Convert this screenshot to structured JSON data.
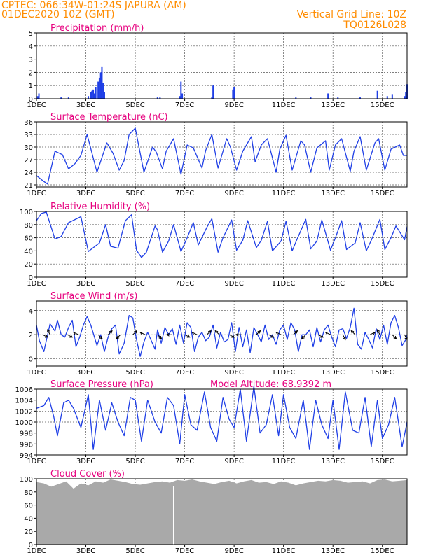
{
  "header": {
    "line1": "CPTEC:   066:34W-01:24S   JAPURA (AM)",
    "line2": "01DEC2020 10Z (GMT)",
    "grid_note": "Vertical Grid Line: 10Z",
    "code": "TQ0126L028"
  },
  "colors": {
    "header": "#ff8c00",
    "title": "#e6007e",
    "series": "#1f3fe6",
    "cloud": "#a9a9a9",
    "arrow": "#000000"
  },
  "x_ticks": [
    "1DEC",
    "3DEC",
    "5DEC",
    "7DEC",
    "9DEC",
    "11DEC",
    "13DEC",
    "15DEC"
  ],
  "x_tick_days": [
    0,
    2,
    4,
    6,
    8,
    10,
    12,
    14
  ],
  "xlim_days": [
    0,
    15
  ],
  "chart_data": [
    {
      "id": "precip",
      "type": "bar",
      "title": "Precipitation (mm/h)",
      "ylim": [
        0,
        5
      ],
      "yticks": [
        0,
        1,
        2,
        3,
        4,
        5
      ],
      "x_days": [
        0.05,
        0.1,
        1.0,
        1.3,
        2.1,
        2.2,
        2.25,
        2.3,
        2.35,
        2.4,
        2.5,
        2.55,
        2.6,
        2.65,
        2.7,
        2.75,
        4.9,
        5.0,
        5.8,
        5.85,
        5.9,
        7.1,
        7.15,
        7.95,
        8.0,
        10.5,
        11.1,
        11.8,
        12.2,
        13.1,
        13.8,
        14.2,
        14.4,
        14.9,
        14.95,
        15.0
      ],
      "values": [
        0.2,
        0.4,
        0.1,
        0.1,
        0.2,
        0.5,
        0.6,
        0.7,
        0.4,
        0.9,
        1.3,
        1.6,
        2.0,
        2.4,
        1.2,
        0.5,
        0.1,
        0.1,
        0.2,
        1.3,
        0.4,
        0.1,
        1.0,
        0.7,
        0.9,
        0.1,
        0.1,
        0.4,
        0.1,
        0.1,
        0.6,
        0.2,
        0.3,
        0.2,
        0.5,
        1.1
      ]
    },
    {
      "id": "temp",
      "type": "line",
      "title": "Surface Temperature (nC)",
      "ylim": [
        20.5,
        36
      ],
      "yticks": [
        21,
        24,
        27,
        30,
        33,
        36
      ],
      "x_days": [
        0,
        0.3,
        0.45,
        0.75,
        1.05,
        1.3,
        1.55,
        1.8,
        2.05,
        2.45,
        2.85,
        3.1,
        3.35,
        3.55,
        3.75,
        4.0,
        4.35,
        4.7,
        4.85,
        5.1,
        5.25,
        5.55,
        5.85,
        6.1,
        6.35,
        6.7,
        6.85,
        7.1,
        7.35,
        7.7,
        7.85,
        8.1,
        8.35,
        8.7,
        8.85,
        9.1,
        9.35,
        9.7,
        9.85,
        10.1,
        10.35,
        10.7,
        10.85,
        11.1,
        11.35,
        11.7,
        11.85,
        12.1,
        12.35,
        12.7,
        12.85,
        13.1,
        13.35,
        13.7,
        13.85,
        14.1,
        14.35,
        14.7,
        14.85,
        15.0
      ],
      "values": [
        23.2,
        21.8,
        21.2,
        29.0,
        28.2,
        24.8,
        26.0,
        28.0,
        33.0,
        24.0,
        31.0,
        28.5,
        24.5,
        26.8,
        33.0,
        34.5,
        24.0,
        30.0,
        28.8,
        24.8,
        29.0,
        32.0,
        23.5,
        30.5,
        29.8,
        25.0,
        29.2,
        33.0,
        25.0,
        32.0,
        30.0,
        24.5,
        29.0,
        32.5,
        26.5,
        30.5,
        32.0,
        24.0,
        29.5,
        32.8,
        24.5,
        31.5,
        30.5,
        24.0,
        29.8,
        31.5,
        24.5,
        30.5,
        32.0,
        24.2,
        29.0,
        32.5,
        24.5,
        31.0,
        32.0,
        24.5,
        29.5,
        30.5,
        28.0,
        28.0
      ]
    },
    {
      "id": "rh",
      "type": "line",
      "title": "Relative Humidity (%)",
      "ylim": [
        0,
        100
      ],
      "yticks": [
        0,
        20,
        40,
        60,
        80,
        100
      ],
      "x_days": [
        0,
        0.2,
        0.4,
        0.75,
        1.0,
        1.3,
        1.8,
        2.1,
        2.55,
        2.8,
        3.0,
        3.3,
        3.6,
        3.85,
        4.05,
        4.25,
        4.45,
        4.8,
        4.9,
        5.1,
        5.35,
        5.55,
        5.85,
        6.1,
        6.35,
        6.55,
        6.9,
        7.1,
        7.35,
        7.55,
        7.9,
        8.1,
        8.35,
        8.55,
        8.9,
        9.1,
        9.35,
        9.55,
        9.9,
        10.1,
        10.35,
        10.55,
        10.9,
        11.1,
        11.35,
        11.55,
        11.9,
        12.1,
        12.35,
        12.55,
        12.9,
        13.1,
        13.35,
        13.55,
        13.9,
        14.1,
        14.35,
        14.55,
        14.9,
        15.0
      ],
      "values": [
        86,
        97,
        99,
        58,
        62,
        83,
        92,
        39,
        52,
        80,
        47,
        44,
        86,
        95,
        41,
        30,
        38,
        78,
        72,
        38,
        55,
        80,
        39,
        60,
        83,
        49,
        76,
        89,
        38,
        60,
        87,
        41,
        56,
        86,
        45,
        56,
        85,
        40,
        55,
        85,
        40,
        58,
        88,
        43,
        55,
        87,
        41,
        60,
        86,
        42,
        52,
        83,
        40,
        56,
        88,
        42,
        60,
        78,
        57,
        77
      ]
    },
    {
      "id": "wind",
      "type": "line",
      "title": "Surface Wind (m/s)",
      "ylim": [
        -0.6,
        4.8
      ],
      "yticks": [
        0,
        2,
        4
      ],
      "x_days": [
        0,
        0.12,
        0.3,
        0.55,
        0.75,
        0.85,
        1.0,
        1.15,
        1.3,
        1.45,
        1.6,
        1.75,
        1.9,
        2.05,
        2.2,
        2.45,
        2.6,
        2.75,
        2.9,
        3.05,
        3.2,
        3.35,
        3.55,
        3.75,
        3.9,
        4.05,
        4.2,
        4.35,
        4.5,
        4.65,
        4.8,
        4.9,
        5.05,
        5.2,
        5.35,
        5.5,
        5.65,
        5.8,
        5.95,
        6.1,
        6.25,
        6.4,
        6.55,
        6.7,
        6.85,
        7.0,
        7.15,
        7.3,
        7.45,
        7.6,
        7.75,
        7.9,
        8.05,
        8.2,
        8.35,
        8.5,
        8.65,
        8.8,
        8.95,
        9.1,
        9.25,
        9.4,
        9.55,
        9.7,
        9.85,
        10.0,
        10.15,
        10.3,
        10.45,
        10.6,
        10.75,
        10.9,
        11.05,
        11.2,
        11.35,
        11.5,
        11.65,
        11.8,
        11.95,
        12.1,
        12.25,
        12.4,
        12.55,
        12.7,
        12.85,
        13.0,
        13.15,
        13.3,
        13.45,
        13.6,
        13.75,
        13.9,
        14.05,
        14.2,
        14.35,
        14.5,
        14.65,
        14.8,
        14.95,
        15.0
      ],
      "values": [
        2.8,
        1.5,
        0.6,
        2.9,
        2.3,
        3.2,
        2.0,
        1.8,
        2.6,
        3.2,
        1.0,
        1.8,
        2.8,
        3.5,
        2.8,
        1.1,
        2.0,
        0.6,
        1.8,
        2.5,
        2.8,
        0.4,
        1.3,
        3.6,
        3.4,
        1.6,
        0.2,
        1.4,
        2.2,
        1.5,
        0.8,
        2.4,
        1.3,
        2.6,
        2.0,
        2.5,
        1.2,
        2.8,
        1.3,
        3.0,
        2.6,
        0.6,
        1.8,
        2.2,
        1.5,
        1.8,
        2.8,
        0.9,
        2.2,
        1.4,
        1.6,
        3.0,
        0.6,
        2.6,
        1.0,
        2.4,
        0.5,
        2.6,
        2.0,
        1.4,
        2.8,
        1.6,
        2.0,
        1.2,
        2.4,
        2.8,
        1.6,
        3.0,
        2.4,
        0.6,
        2.0,
        2.0,
        2.4,
        1.0,
        2.6,
        1.4,
        2.4,
        2.8,
        1.8,
        1.0,
        2.4,
        2.5,
        1.7,
        2.6,
        4.2,
        1.2,
        0.8,
        2.2,
        1.6,
        0.9,
        2.5,
        1.6,
        2.8,
        1.2,
        3.0,
        3.6,
        2.6,
        1.1,
        1.6,
        2.0
      ],
      "arrows": {
        "x_days": [
          0.25,
          0.55,
          1.25,
          1.7,
          2.5,
          2.9,
          3.4,
          3.9,
          4.4,
          4.9,
          5.5,
          6.0,
          6.5,
          6.9,
          7.4,
          7.8,
          8.3,
          8.9,
          9.4,
          9.9,
          10.4,
          10.9,
          11.4,
          11.9,
          12.4,
          12.9,
          13.5,
          13.9,
          14.4,
          14.9
        ],
        "u": [
          2,
          -1,
          2,
          -2,
          1,
          1,
          -1,
          2,
          -2,
          1,
          -2,
          2,
          -2,
          1,
          -1,
          2,
          -2,
          1,
          2,
          -2,
          1,
          -1,
          2,
          -2,
          1,
          -1,
          2,
          -1,
          1,
          1
        ],
        "v": [
          -1,
          2,
          -1,
          1,
          -1,
          1,
          -1,
          2,
          1,
          -1,
          0,
          -1,
          1,
          1,
          1,
          -1,
          0,
          1,
          -1,
          1,
          1,
          -1,
          -1,
          1,
          -2,
          1,
          1,
          2,
          -1,
          -2
        ]
      }
    },
    {
      "id": "pres",
      "type": "line",
      "title": "Surface Pressure (hPa)",
      "annotation": "Model Altitude: 68.9392  m",
      "ylim": [
        994,
        1006
      ],
      "yticks": [
        994,
        996,
        998,
        1000,
        1002,
        1004,
        1006
      ],
      "x_days": [
        0,
        0.3,
        0.5,
        0.7,
        0.85,
        1.1,
        1.3,
        1.5,
        1.8,
        2.1,
        2.3,
        2.55,
        2.8,
        3.05,
        3.3,
        3.55,
        3.8,
        4.0,
        4.25,
        4.5,
        4.8,
        5.05,
        5.3,
        5.55,
        5.8,
        6.0,
        6.25,
        6.5,
        6.8,
        7.05,
        7.3,
        7.55,
        7.8,
        8.0,
        8.25,
        8.5,
        8.8,
        9.05,
        9.3,
        9.55,
        9.8,
        10.0,
        10.25,
        10.5,
        10.8,
        11.05,
        11.3,
        11.55,
        11.8,
        12.0,
        12.25,
        12.5,
        12.8,
        13.05,
        13.3,
        13.55,
        13.8,
        14.0,
        14.25,
        14.5,
        14.8,
        15.0
      ],
      "values": [
        1002.5,
        1003.0,
        1004.5,
        1001.0,
        997.5,
        1003.5,
        1004.0,
        1002.5,
        999.0,
        1005.0,
        995.0,
        1004.0,
        998.5,
        1003.5,
        1000.0,
        997.5,
        1004.5,
        1004.0,
        996.5,
        1004.0,
        1000.0,
        998.0,
        1004.5,
        1003.0,
        996.0,
        1005.0,
        999.5,
        998.5,
        1005.5,
        999.0,
        996.5,
        1004.5,
        1000.5,
        999.0,
        1006.0,
        996.5,
        1006.5,
        998.0,
        999.5,
        1005.0,
        997.5,
        1005.0,
        999.0,
        997.0,
        1004.0,
        995.0,
        1004.0,
        999.5,
        997.0,
        1004.0,
        995.0,
        1005.5,
        998.5,
        998.0,
        1004.5,
        995.5,
        1004.0,
        997.0,
        999.5,
        1004.5,
        995.5,
        1000.0
      ]
    },
    {
      "id": "cloud",
      "type": "area",
      "title": "Cloud Cover (%)",
      "ylim": [
        0,
        100
      ],
      "yticks": [
        0,
        20,
        40,
        60,
        80,
        100
      ],
      "x_days": [
        0,
        0.3,
        0.6,
        0.9,
        1.2,
        1.5,
        1.8,
        2.1,
        2.4,
        2.7,
        3.0,
        3.3,
        3.6,
        3.9,
        4.2,
        4.5,
        4.8,
        5.1,
        5.4,
        5.7,
        6.0,
        6.3,
        6.6,
        6.9,
        7.2,
        7.5,
        7.8,
        8.1,
        8.4,
        8.7,
        9.0,
        9.3,
        9.6,
        9.9,
        10.2,
        10.5,
        10.8,
        11.1,
        11.4,
        11.7,
        12.0,
        12.3,
        12.6,
        12.9,
        13.2,
        13.5,
        13.8,
        14.1,
        14.4,
        14.7,
        15.0
      ],
      "values": [
        95,
        93,
        88,
        92,
        96,
        85,
        93,
        90,
        96,
        94,
        99,
        97,
        95,
        92,
        91,
        93,
        95,
        96,
        94,
        98,
        97,
        99,
        96,
        94,
        92,
        95,
        97,
        93,
        96,
        98,
        94,
        95,
        92,
        96,
        94,
        90,
        93,
        95,
        97,
        96,
        98,
        97,
        94,
        95,
        96,
        93,
        98,
        99,
        96,
        97,
        98
      ],
      "gap_day": 5.55
    }
  ]
}
